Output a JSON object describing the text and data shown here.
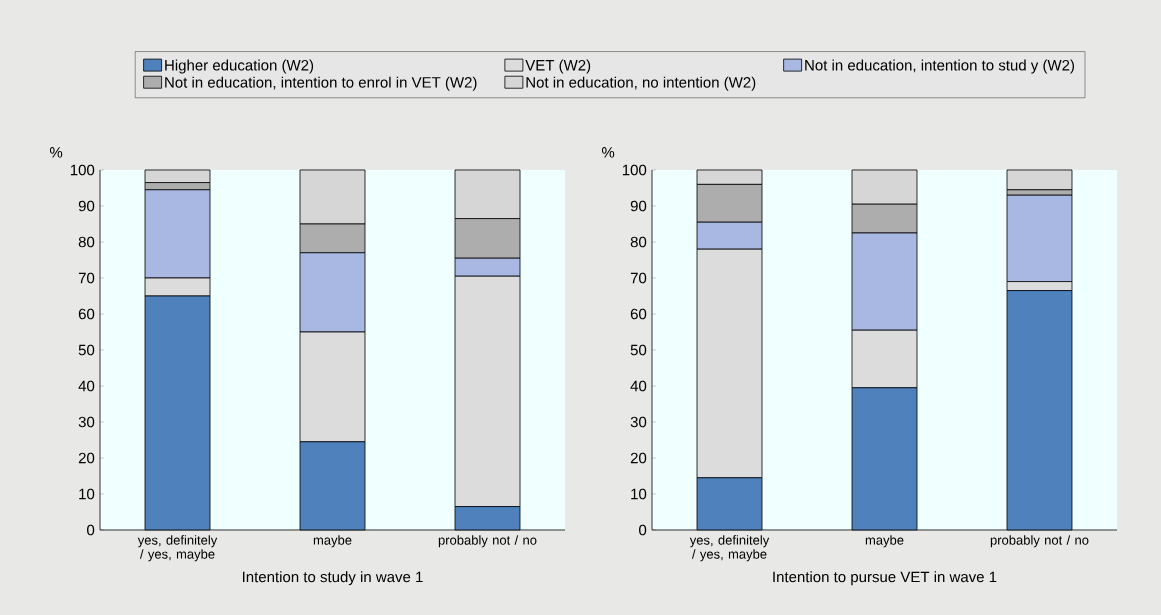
{
  "chart_data": [
    {
      "type": "bar",
      "stacked": true,
      "legend": "top",
      "xlabel": "Intention to study in wave 1",
      "ylabel": "%",
      "categories": [
        "yes, definitely / yes, maybe",
        "maybe",
        "probably not / no"
      ],
      "ylim": [
        0,
        100
      ],
      "yticks": [
        0,
        10,
        20,
        30,
        40,
        50,
        60,
        70,
        80,
        90,
        100
      ],
      "series": [
        {
          "name": "Higher education (W2)",
          "color": "#4f81bd",
          "values": [
            65,
            24.5,
            6.5
          ]
        },
        {
          "name": "VET  (W2)",
          "color": "#dcdcdc",
          "values": [
            5,
            30.5,
            64
          ]
        },
        {
          "name": "Not in education, intention to stud y (W2)",
          "color": "#a8b8e2",
          "values": [
            24.5,
            22,
            5
          ]
        },
        {
          "name": "Not in education, intention to enrol in VET (W2)",
          "color": "#adadad",
          "values": [
            2,
            8,
            11
          ]
        },
        {
          "name": "Not in education, no intention (W2)",
          "color": "#d6d6d6",
          "values": [
            3.5,
            15,
            13.5
          ]
        }
      ]
    },
    {
      "type": "bar",
      "stacked": true,
      "xlabel": "Intention to pursue VET in wave 1",
      "ylabel": "%",
      "categories": [
        "yes, definitely / yes, maybe",
        "maybe",
        "probably not / no"
      ],
      "ylim": [
        0,
        100
      ],
      "yticks": [
        0,
        10,
        20,
        30,
        40,
        50,
        60,
        70,
        80,
        90,
        100
      ],
      "series": [
        {
          "color": "#4f81bd",
          "values": [
            14.5,
            39.5,
            66.5
          ]
        },
        {
          "color": "#dcdcdc",
          "values": [
            63.5,
            16,
            2.5
          ]
        },
        {
          "color": "#a8b8e2",
          "values": [
            7.5,
            27,
            24
          ]
        },
        {
          "color": "#adadad",
          "values": [
            10.5,
            8,
            1.5
          ]
        },
        {
          "color": "#d6d6d6",
          "values": [
            4,
            9.5,
            5.5
          ]
        }
      ]
    }
  ]
}
